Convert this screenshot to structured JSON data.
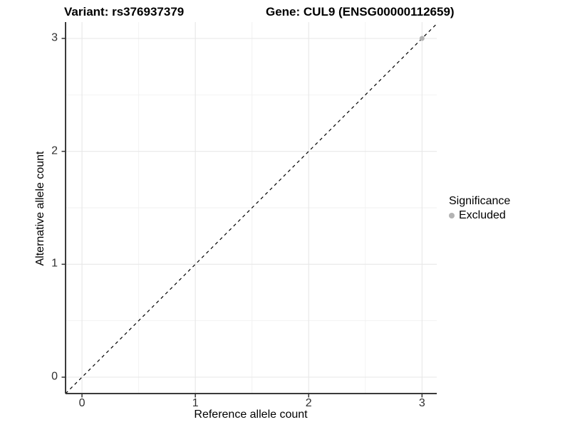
{
  "chart_data": {
    "type": "scatter",
    "titles": {
      "variant": "Variant: rs376937379",
      "gene": "Gene: CUL9 (ENSG00000112659)"
    },
    "xlabel": "Reference allele count",
    "ylabel": "Alternative allele count",
    "xticks": [
      0,
      1,
      2,
      3
    ],
    "yticks": [
      0,
      1,
      2,
      3
    ],
    "xminor": [
      0.5,
      1.5,
      2.5
    ],
    "yminor": [
      0.5,
      1.5,
      2.5
    ],
    "xlim": [
      -0.145,
      3.13
    ],
    "ylim": [
      -0.145,
      3.145
    ],
    "grid": true,
    "points": [
      {
        "x": 3,
        "y": 3,
        "series": "Excluded"
      }
    ],
    "reference_line": {
      "type": "identity",
      "style": "dashed",
      "color": "#000000"
    },
    "legend": {
      "title": "Significance",
      "position": "right",
      "entries": [
        {
          "label": "Excluded",
          "color": "#b3b3b3"
        }
      ]
    },
    "colors": {
      "point_excluded": "#b3b3b3",
      "grid_major": "#e7e7e7",
      "grid_minor": "#f2f2f2",
      "axis_line": "#3a3a3a",
      "tick_mark": "#333333"
    }
  }
}
